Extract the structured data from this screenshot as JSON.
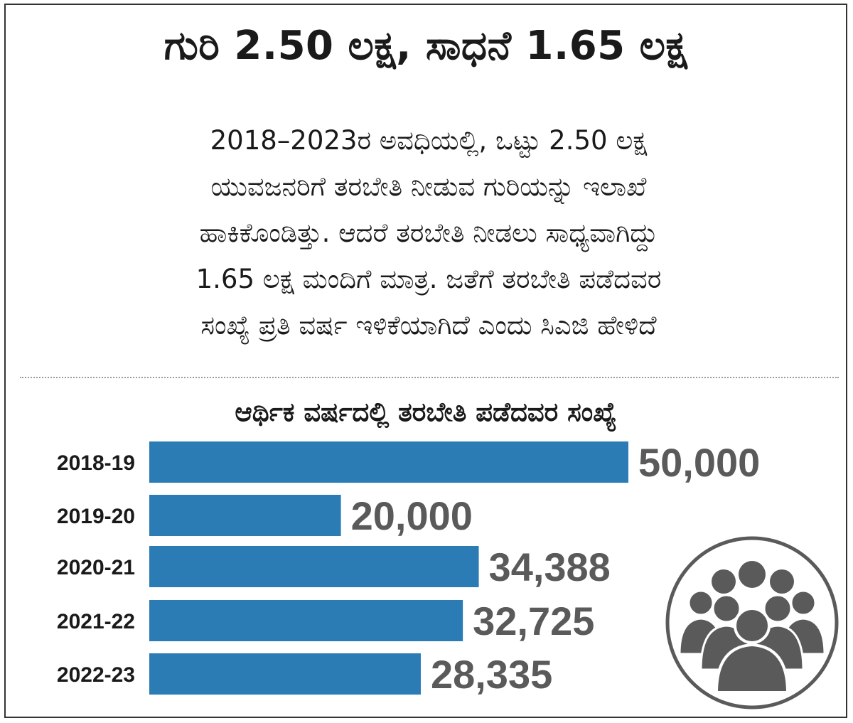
{
  "headline": "ಗುರಿ 2.50 ಲಕ್ಷ, ಸಾಧನೆ 1.65 ಲಕ್ಷ",
  "summary_lines": [
    "2018–2023ರ ಅವಧಿಯಲ್ಲಿ, ಒಟ್ಟು 2.50 ಲಕ್ಷ",
    "ಯುವಜನರಿಗೆ ತರಬೇತಿ ನೀಡುವ ಗುರಿಯನ್ನು ಇಲಾಖೆ",
    "ಹಾಕಿಕೊಂಡಿತ್ತು. ಆದರೆ ತರಬೇತಿ ನೀಡಲು ಸಾಧ್ಯವಾಗಿದ್ದು",
    "1.65 ಲಕ್ಷ ಮಂದಿಗೆ ಮಾತ್ರ. ಜತೆಗೆ ತರಬೇತಿ ಪಡೆದವರ",
    "ಸಂಖ್ಯೆ ಪ್ರತಿ ವರ್ಷ ಇಳಿಕೆಯಾಗಿದೆ ಎಂದು ಸಿಎಜಿ ಹೇಳಿದೆ"
  ],
  "icons": {
    "people": "people-group-icon"
  },
  "colors": {
    "bar": "#2b7bb5",
    "value_text": "#5a5a5a",
    "icon": "#5a5a5a"
  },
  "chart_data": {
    "type": "bar",
    "orientation": "horizontal",
    "title": "ಆರ್ಥಿಕ ವರ್ಷದಲ್ಲಿ ತರಬೇತಿ ಪಡೆದವರ ಸಂಖ್ಯೆ",
    "categories": [
      "2018-19",
      "2019-20",
      "2020-21",
      "2021-22",
      "2022-23"
    ],
    "values": [
      50000,
      20000,
      34388,
      32725,
      28335
    ],
    "value_labels": [
      "50,000",
      "20,000",
      "34,388",
      "32,725",
      "28,335"
    ],
    "xlim": [
      0,
      50000
    ],
    "grid": false,
    "legend": "none"
  }
}
